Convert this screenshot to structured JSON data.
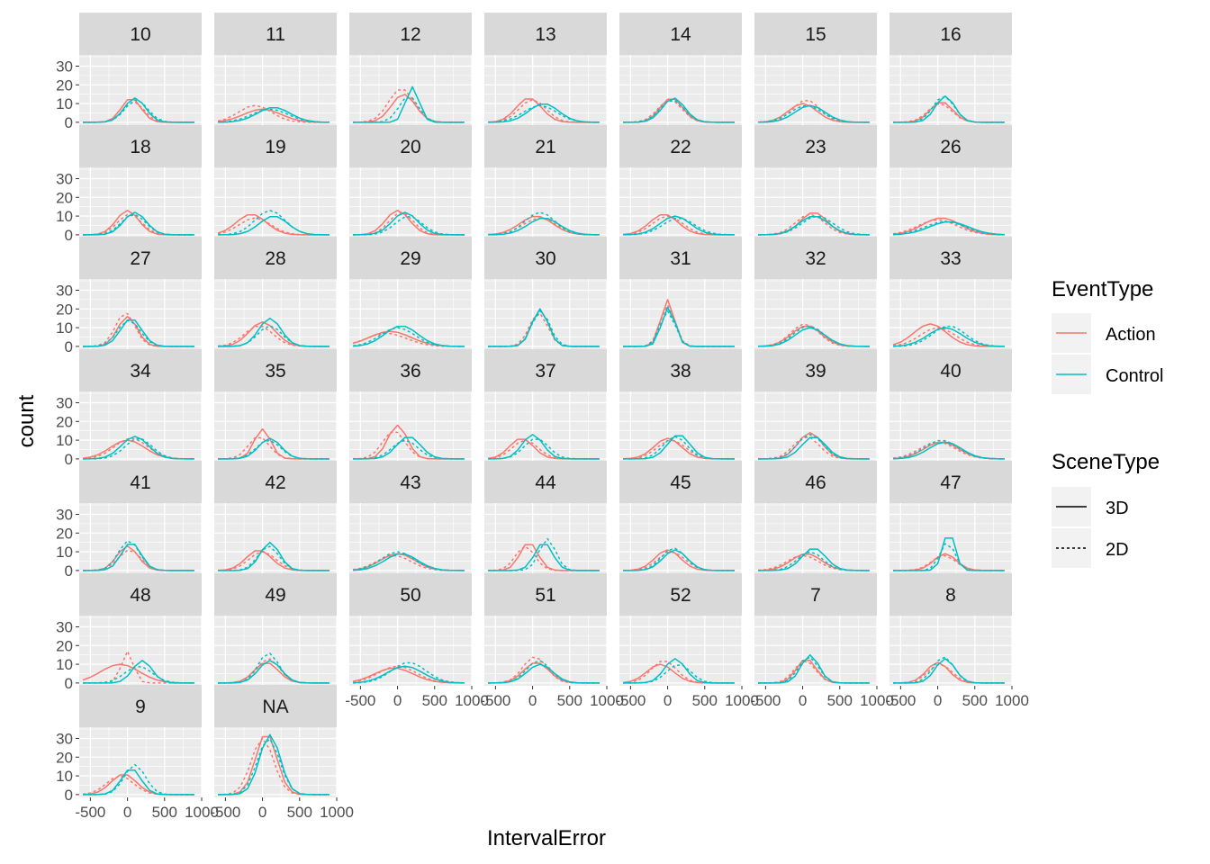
{
  "chart_data": {
    "type": "line",
    "xlabel": "IntervalError",
    "ylabel": "count",
    "xlim": [
      -650,
      1000
    ],
    "ylim": [
      -1.5,
      36
    ],
    "x_ticks": [
      -500,
      0,
      500,
      1000
    ],
    "x_tick_labels": [
      "-500",
      "0",
      "500",
      "1000"
    ],
    "y_ticks": [
      0,
      10,
      20,
      30
    ],
    "y_tick_labels": [
      "0",
      "10",
      "20",
      "30"
    ],
    "grid": true,
    "legend_position": "right",
    "legends": [
      {
        "title": "EventType",
        "kind": "color",
        "entries": [
          {
            "label": "Action",
            "color": "#F8766D"
          },
          {
            "label": "Control",
            "color": "#00BFC4"
          }
        ]
      },
      {
        "title": "SceneType",
        "kind": "linetype",
        "entries": [
          {
            "label": "3D",
            "dash": "solid"
          },
          {
            "label": "2D",
            "dash": "dotted"
          }
        ]
      }
    ],
    "x_bins": [
      -600,
      -500,
      -400,
      -300,
      -200,
      -100,
      0,
      100,
      200,
      300,
      400,
      500,
      600,
      700,
      800,
      900
    ],
    "series_keys": [
      "Action 3D",
      "Action 2D",
      "Control 3D",
      "Control 2D"
    ],
    "panels": [
      {
        "label": "10",
        "peaks": [
          [
            50,
            13,
            130
          ],
          [
            80,
            11,
            140
          ],
          [
            100,
            13,
            140
          ],
          [
            120,
            12,
            150
          ]
        ]
      },
      {
        "label": "11",
        "peaks": [
          [
            0,
            7,
            250
          ],
          [
            -100,
            9,
            220
          ],
          [
            150,
            8,
            220
          ],
          [
            100,
            7,
            240
          ]
        ]
      },
      {
        "label": "12",
        "peaks": [
          [
            80,
            15,
            160
          ],
          [
            50,
            18,
            170
          ],
          [
            200,
            19,
            90
          ],
          [
            150,
            14,
            130
          ]
        ]
      },
      {
        "label": "13",
        "peaks": [
          [
            -50,
            13,
            170
          ],
          [
            0,
            12,
            180
          ],
          [
            150,
            10,
            200
          ],
          [
            100,
            9,
            220
          ]
        ]
      },
      {
        "label": "14",
        "peaks": [
          [
            50,
            13,
            150
          ],
          [
            30,
            12,
            160
          ],
          [
            80,
            13,
            150
          ],
          [
            60,
            12,
            160
          ]
        ]
      },
      {
        "label": "15",
        "peaks": [
          [
            0,
            10,
            190
          ],
          [
            50,
            12,
            180
          ],
          [
            100,
            9,
            200
          ],
          [
            50,
            9,
            210
          ]
        ]
      },
      {
        "label": "16",
        "peaks": [
          [
            50,
            11,
            150
          ],
          [
            30,
            10,
            160
          ],
          [
            100,
            14,
            130
          ],
          [
            80,
            14,
            140
          ]
        ]
      },
      {
        "label": "18",
        "peaks": [
          [
            0,
            13,
            150
          ],
          [
            30,
            11,
            160
          ],
          [
            100,
            12,
            150
          ],
          [
            80,
            11,
            160
          ]
        ]
      },
      {
        "label": "19",
        "peaks": [
          [
            -150,
            11,
            200
          ],
          [
            -100,
            9,
            210
          ],
          [
            150,
            10,
            190
          ],
          [
            100,
            13,
            200
          ]
        ]
      },
      {
        "label": "20",
        "peaks": [
          [
            0,
            13,
            160
          ],
          [
            50,
            12,
            160
          ],
          [
            100,
            12,
            170
          ],
          [
            150,
            10,
            180
          ]
        ]
      },
      {
        "label": "21",
        "peaks": [
          [
            50,
            10,
            220
          ],
          [
            100,
            9,
            220
          ],
          [
            150,
            9,
            210
          ],
          [
            100,
            12,
            200
          ]
        ]
      },
      {
        "label": "22",
        "peaks": [
          [
            -50,
            11,
            190
          ],
          [
            0,
            10,
            200
          ],
          [
            100,
            10,
            200
          ],
          [
            150,
            9,
            210
          ]
        ]
      },
      {
        "label": "23",
        "peaks": [
          [
            150,
            12,
            180
          ],
          [
            100,
            11,
            190
          ],
          [
            150,
            10,
            200
          ],
          [
            200,
            10,
            210
          ]
        ]
      },
      {
        "label": "26",
        "peaks": [
          [
            50,
            9,
            250
          ],
          [
            0,
            8,
            260
          ],
          [
            150,
            7,
            260
          ],
          [
            100,
            7,
            270
          ]
        ]
      },
      {
        "label": "27",
        "peaks": [
          [
            0,
            16,
            130
          ],
          [
            -30,
            18,
            130
          ],
          [
            50,
            15,
            140
          ],
          [
            20,
            14,
            150
          ]
        ]
      },
      {
        "label": "28",
        "peaks": [
          [
            0,
            13,
            180
          ],
          [
            -50,
            11,
            190
          ],
          [
            100,
            15,
            150
          ],
          [
            100,
            11,
            160
          ]
        ]
      },
      {
        "label": "29",
        "peaks": [
          [
            -100,
            8,
            280
          ],
          [
            -150,
            7,
            270
          ],
          [
            50,
            11,
            220
          ],
          [
            0,
            10,
            230
          ]
        ]
      },
      {
        "label": "30",
        "peaks": [
          [
            100,
            20,
            110
          ],
          [
            80,
            18,
            120
          ],
          [
            100,
            20,
            110
          ],
          [
            110,
            19,
            120
          ]
        ]
      },
      {
        "label": "31",
        "peaks": [
          [
            0,
            25,
            90
          ],
          [
            0,
            22,
            100
          ],
          [
            10,
            21,
            90
          ],
          [
            0,
            19,
            100
          ]
        ]
      },
      {
        "label": "32",
        "peaks": [
          [
            50,
            11,
            200
          ],
          [
            30,
            12,
            190
          ],
          [
            100,
            10,
            200
          ],
          [
            80,
            11,
            200
          ]
        ]
      },
      {
        "label": "33",
        "peaks": [
          [
            -100,
            12,
            220
          ],
          [
            0,
            10,
            230
          ],
          [
            100,
            10,
            230
          ],
          [
            150,
            11,
            220
          ]
        ]
      },
      {
        "label": "34",
        "peaks": [
          [
            0,
            10,
            230
          ],
          [
            50,
            11,
            220
          ],
          [
            100,
            12,
            180
          ],
          [
            150,
            11,
            180
          ]
        ]
      },
      {
        "label": "35",
        "peaks": [
          [
            0,
            16,
            110
          ],
          [
            -50,
            12,
            140
          ],
          [
            100,
            11,
            150
          ],
          [
            80,
            10,
            160
          ]
        ]
      },
      {
        "label": "36",
        "peaks": [
          [
            0,
            18,
            130
          ],
          [
            -50,
            15,
            150
          ],
          [
            150,
            12,
            160
          ],
          [
            100,
            10,
            170
          ]
        ]
      },
      {
        "label": "37",
        "peaks": [
          [
            -150,
            11,
            160
          ],
          [
            -100,
            10,
            170
          ],
          [
            0,
            13,
            140
          ],
          [
            50,
            11,
            160
          ]
        ]
      },
      {
        "label": "38",
        "peaks": [
          [
            0,
            11,
            180
          ],
          [
            50,
            10,
            190
          ],
          [
            150,
            13,
            150
          ],
          [
            100,
            12,
            160
          ]
        ]
      },
      {
        "label": "39",
        "peaks": [
          [
            100,
            14,
            160
          ],
          [
            50,
            12,
            170
          ],
          [
            150,
            12,
            160
          ],
          [
            100,
            13,
            170
          ]
        ]
      },
      {
        "label": "40",
        "peaks": [
          [
            50,
            9,
            230
          ],
          [
            0,
            9,
            240
          ],
          [
            100,
            9,
            220
          ],
          [
            50,
            10,
            230
          ]
        ]
      },
      {
        "label": "41",
        "peaks": [
          [
            0,
            13,
            140
          ],
          [
            30,
            11,
            150
          ],
          [
            50,
            15,
            130
          ],
          [
            20,
            16,
            140
          ]
        ]
      },
      {
        "label": "42",
        "peaks": [
          [
            -50,
            11,
            170
          ],
          [
            0,
            10,
            180
          ],
          [
            100,
            15,
            130
          ],
          [
            80,
            13,
            140
          ]
        ]
      },
      {
        "label": "43",
        "peaks": [
          [
            0,
            9,
            230
          ],
          [
            -50,
            8,
            230
          ],
          [
            50,
            9,
            220
          ],
          [
            0,
            10,
            220
          ]
        ]
      },
      {
        "label": "44",
        "peaks": [
          [
            -50,
            15,
            120
          ],
          [
            -100,
            13,
            130
          ],
          [
            150,
            15,
            120
          ],
          [
            200,
            17,
            110
          ]
        ]
      },
      {
        "label": "45",
        "peaks": [
          [
            0,
            11,
            170
          ],
          [
            50,
            10,
            180
          ],
          [
            100,
            11,
            160
          ],
          [
            80,
            12,
            160
          ]
        ]
      },
      {
        "label": "46",
        "peaks": [
          [
            50,
            9,
            200
          ],
          [
            0,
            8,
            210
          ],
          [
            150,
            12,
            160
          ],
          [
            100,
            10,
            170
          ]
        ]
      },
      {
        "label": "47",
        "peaks": [
          [
            100,
            9,
            150
          ],
          [
            80,
            8,
            160
          ],
          [
            150,
            21,
            80
          ],
          [
            130,
            15,
            100
          ]
        ]
      },
      {
        "label": "48",
        "peaks": [
          [
            -100,
            10,
            260
          ],
          [
            0,
            17,
            80
          ],
          [
            200,
            12,
            130
          ],
          [
            150,
            9,
            180
          ]
        ]
      },
      {
        "label": "49",
        "peaks": [
          [
            50,
            11,
            160
          ],
          [
            80,
            13,
            150
          ],
          [
            100,
            12,
            150
          ],
          [
            80,
            16,
            140
          ]
        ]
      },
      {
        "label": "50",
        "peaks": [
          [
            -50,
            8,
            260
          ],
          [
            0,
            9,
            250
          ],
          [
            100,
            9,
            240
          ],
          [
            150,
            11,
            230
          ]
        ]
      },
      {
        "label": "51",
        "peaks": [
          [
            50,
            11,
            170
          ],
          [
            30,
            14,
            160
          ],
          [
            100,
            10,
            170
          ],
          [
            80,
            12,
            160
          ]
        ]
      },
      {
        "label": "52",
        "peaks": [
          [
            -100,
            10,
            180
          ],
          [
            -50,
            12,
            170
          ],
          [
            100,
            13,
            140
          ],
          [
            150,
            10,
            160
          ]
        ]
      },
      {
        "label": "7",
        "peaks": [
          [
            50,
            13,
            130
          ],
          [
            30,
            12,
            140
          ],
          [
            100,
            15,
            120
          ],
          [
            80,
            14,
            130
          ]
        ]
      },
      {
        "label": "8",
        "peaks": [
          [
            0,
            11,
            150
          ],
          [
            30,
            10,
            160
          ],
          [
            100,
            13,
            130
          ],
          [
            80,
            14,
            140
          ]
        ]
      },
      {
        "label": "9",
        "peaks": [
          [
            -50,
            11,
            170
          ],
          [
            -100,
            10,
            180
          ],
          [
            50,
            14,
            130
          ],
          [
            100,
            16,
            140
          ]
        ]
      },
      {
        "label": "NA",
        "peaks": [
          [
            50,
            33,
            140
          ],
          [
            0,
            30,
            150
          ],
          [
            100,
            32,
            140
          ],
          [
            80,
            30,
            150
          ]
        ]
      }
    ]
  }
}
